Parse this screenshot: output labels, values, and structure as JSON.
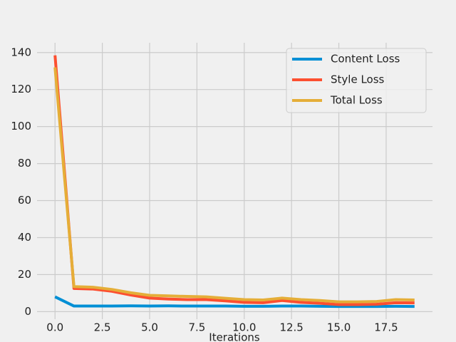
{
  "chart_data": {
    "type": "line",
    "xlabel": "Iterations",
    "x": [
      0,
      1,
      2,
      3,
      4,
      5,
      6,
      7,
      8,
      9,
      10,
      11,
      12,
      13,
      14,
      15,
      16,
      17,
      18,
      19
    ],
    "series": [
      {
        "name": "Content Loss",
        "color": "#008fd5",
        "values": [
          8,
          3,
          3,
          3,
          3.1,
          3,
          3.1,
          3,
          3,
          3,
          2.9,
          2.9,
          3,
          3,
          2.9,
          2.8,
          2.8,
          2.8,
          2.9,
          2.8
        ]
      },
      {
        "name": "Style Loss",
        "color": "#fc4f30",
        "values": [
          138.5,
          12.5,
          12.2,
          11,
          9,
          7.3,
          6.8,
          6.5,
          6.5,
          5.8,
          5,
          4.8,
          6,
          5,
          4.5,
          3.8,
          3.8,
          4,
          4.8,
          4.7
        ]
      },
      {
        "name": "Total Loss",
        "color": "#e5ae38",
        "values": [
          132,
          13.5,
          13.2,
          12,
          10.2,
          8.8,
          8.5,
          8.2,
          8,
          7.2,
          6.5,
          6.3,
          7.3,
          6.5,
          6,
          5.3,
          5.3,
          5.5,
          6.5,
          6.3
        ]
      }
    ],
    "xlim": [
      -0.95,
      19.95
    ],
    "xticks": [
      {
        "value": 0,
        "label": "0.0"
      },
      {
        "value": 2.5,
        "label": "2.5"
      },
      {
        "value": 5,
        "label": "5.0"
      },
      {
        "value": 7.5,
        "label": "7.5"
      },
      {
        "value": 10,
        "label": "10.0"
      },
      {
        "value": 12.5,
        "label": "12.5"
      },
      {
        "value": 15,
        "label": "15.0"
      },
      {
        "value": 17.5,
        "label": "17.5"
      }
    ],
    "ylim": [
      -4.1,
      145.3
    ],
    "yticks": [
      0,
      20,
      40,
      60,
      80,
      100,
      120,
      140
    ],
    "grid": true,
    "legend": "upper right"
  }
}
